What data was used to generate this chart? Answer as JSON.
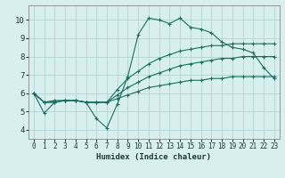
{
  "title": "",
  "xlabel": "Humidex (Indice chaleur)",
  "bg_color": "#d8efef",
  "grid_color": "#b8d8d8",
  "line_color": "#1a6e60",
  "xlim": [
    -0.5,
    23.5
  ],
  "ylim": [
    3.5,
    10.8
  ],
  "xticks": [
    0,
    1,
    2,
    3,
    4,
    5,
    6,
    7,
    8,
    9,
    10,
    11,
    12,
    13,
    14,
    15,
    16,
    17,
    18,
    19,
    20,
    21,
    22,
    23
  ],
  "yticks": [
    4,
    5,
    6,
    7,
    8,
    9,
    10
  ],
  "series": [
    [
      6.0,
      4.9,
      5.5,
      5.6,
      5.6,
      5.5,
      4.6,
      4.1,
      5.4,
      6.9,
      9.2,
      10.1,
      10.0,
      9.8,
      10.1,
      9.6,
      9.5,
      9.3,
      8.8,
      8.5,
      8.4,
      8.2,
      7.4,
      6.8
    ],
    [
      6.0,
      5.5,
      5.6,
      5.6,
      5.6,
      5.5,
      5.5,
      5.5,
      6.2,
      6.8,
      7.2,
      7.6,
      7.9,
      8.1,
      8.3,
      8.4,
      8.5,
      8.6,
      8.6,
      8.7,
      8.7,
      8.7,
      8.7,
      8.7
    ],
    [
      6.0,
      5.5,
      5.5,
      5.6,
      5.6,
      5.5,
      5.5,
      5.5,
      5.9,
      6.3,
      6.6,
      6.9,
      7.1,
      7.3,
      7.5,
      7.6,
      7.7,
      7.8,
      7.9,
      7.9,
      8.0,
      8.0,
      8.0,
      8.0
    ],
    [
      6.0,
      5.5,
      5.5,
      5.6,
      5.6,
      5.5,
      5.5,
      5.5,
      5.7,
      5.9,
      6.1,
      6.3,
      6.4,
      6.5,
      6.6,
      6.7,
      6.7,
      6.8,
      6.8,
      6.9,
      6.9,
      6.9,
      6.9,
      6.9
    ]
  ]
}
